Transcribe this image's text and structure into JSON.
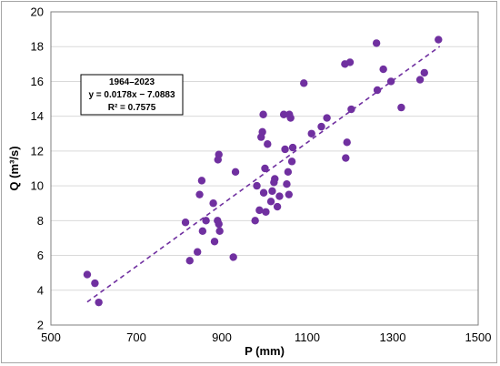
{
  "chart_data": {
    "type": "scatter",
    "xlabel": "P (mm)",
    "ylabel": "Q (m³/s)",
    "xlim": [
      500,
      1500
    ],
    "ylim": [
      2,
      20
    ],
    "xticks": [
      500,
      700,
      900,
      1100,
      1300,
      1500
    ],
    "yticks": [
      2,
      4,
      6,
      8,
      10,
      12,
      14,
      16,
      18,
      20
    ],
    "grid": "horizontal",
    "legend": "none",
    "colors": {
      "points": "#7030a0",
      "trendline": "#7030a0"
    },
    "annotation": [
      "1964–2023",
      "y = 0.0178x − 7.0883",
      "R² = 0.7575"
    ],
    "trendline": {
      "slope": 0.0178,
      "intercept": -7.0883,
      "x_range": [
        585,
        1410
      ]
    },
    "points": [
      {
        "x": 585,
        "y": 4.9
      },
      {
        "x": 603,
        "y": 4.4
      },
      {
        "x": 612,
        "y": 3.3
      },
      {
        "x": 815,
        "y": 7.9
      },
      {
        "x": 825,
        "y": 5.7
      },
      {
        "x": 843,
        "y": 6.2
      },
      {
        "x": 848,
        "y": 9.5
      },
      {
        "x": 853,
        "y": 10.3
      },
      {
        "x": 855,
        "y": 7.4
      },
      {
        "x": 863,
        "y": 8.0
      },
      {
        "x": 880,
        "y": 9.0
      },
      {
        "x": 883,
        "y": 6.8
      },
      {
        "x": 890,
        "y": 8.0
      },
      {
        "x": 891,
        "y": 11.5
      },
      {
        "x": 893,
        "y": 11.8
      },
      {
        "x": 893,
        "y": 7.8
      },
      {
        "x": 895,
        "y": 7.4
      },
      {
        "x": 927,
        "y": 5.9
      },
      {
        "x": 932,
        "y": 10.8
      },
      {
        "x": 978,
        "y": 8.0
      },
      {
        "x": 982,
        "y": 10.0
      },
      {
        "x": 988,
        "y": 8.6
      },
      {
        "x": 992,
        "y": 12.8
      },
      {
        "x": 995,
        "y": 13.1
      },
      {
        "x": 997,
        "y": 14.1
      },
      {
        "x": 998,
        "y": 9.6
      },
      {
        "x": 1001,
        "y": 11.0
      },
      {
        "x": 1003,
        "y": 8.5
      },
      {
        "x": 1007,
        "y": 12.4
      },
      {
        "x": 1015,
        "y": 9.1
      },
      {
        "x": 1018,
        "y": 9.7
      },
      {
        "x": 1022,
        "y": 10.2
      },
      {
        "x": 1024,
        "y": 10.4
      },
      {
        "x": 1030,
        "y": 8.8
      },
      {
        "x": 1035,
        "y": 9.4
      },
      {
        "x": 1045,
        "y": 14.1
      },
      {
        "x": 1048,
        "y": 12.1
      },
      {
        "x": 1052,
        "y": 10.1
      },
      {
        "x": 1055,
        "y": 10.8
      },
      {
        "x": 1057,
        "y": 9.5
      },
      {
        "x": 1058,
        "y": 14.1
      },
      {
        "x": 1061,
        "y": 13.9
      },
      {
        "x": 1064,
        "y": 11.4
      },
      {
        "x": 1066,
        "y": 12.2
      },
      {
        "x": 1092,
        "y": 15.9
      },
      {
        "x": 1110,
        "y": 13.0
      },
      {
        "x": 1133,
        "y": 13.4
      },
      {
        "x": 1146,
        "y": 13.9
      },
      {
        "x": 1188,
        "y": 17.0
      },
      {
        "x": 1190,
        "y": 11.6
      },
      {
        "x": 1193,
        "y": 12.5
      },
      {
        "x": 1200,
        "y": 17.1
      },
      {
        "x": 1203,
        "y": 14.4
      },
      {
        "x": 1262,
        "y": 18.2
      },
      {
        "x": 1264,
        "y": 15.5
      },
      {
        "x": 1278,
        "y": 16.7
      },
      {
        "x": 1296,
        "y": 16.0
      },
      {
        "x": 1320,
        "y": 14.5
      },
      {
        "x": 1364,
        "y": 16.1
      },
      {
        "x": 1374,
        "y": 16.5
      },
      {
        "x": 1407,
        "y": 18.4
      }
    ]
  }
}
